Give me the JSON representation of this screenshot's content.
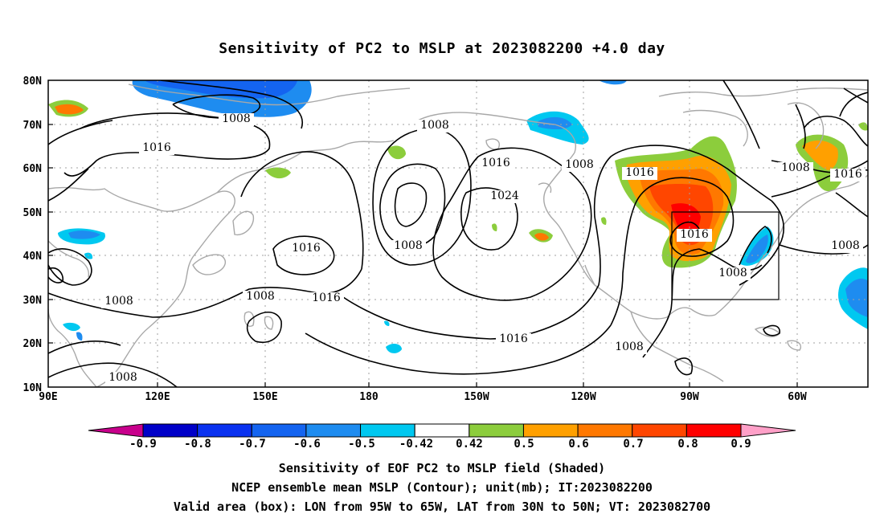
{
  "title": "Sensitivity of PC2 to MSLP at 2023082200 +4.0 day",
  "lat_labels": [
    "80N",
    "70N",
    "60N",
    "50N",
    "40N",
    "30N",
    "20N",
    "10N"
  ],
  "lon_labels": [
    "90E",
    "120E",
    "150E",
    "180",
    "150W",
    "120W",
    "90W",
    "60W"
  ],
  "contour_labels": [
    "1008",
    "1016",
    "1008",
    "1016",
    "1008",
    "1016",
    "1024",
    "1008",
    "1008",
    "1016",
    "1008",
    "1016",
    "1008",
    "1016",
    "1008",
    "1016",
    "1008",
    "1016",
    "1008",
    "1008",
    "1016",
    "1016"
  ],
  "colorbar": {
    "labels": [
      "-0.9",
      "-0.8",
      "-0.7",
      "-0.6",
      "-0.5",
      "-0.42",
      "0.42",
      "0.5",
      "0.6",
      "0.7",
      "0.8",
      "0.9"
    ],
    "colors": [
      "#0000c8",
      "#0a32f0",
      "#1464f0",
      "#1e8cf0",
      "#00c8f0",
      "#ffffff",
      "#8ccd3c",
      "#ffa000",
      "#ff7800",
      "#ff4600",
      "#ff0000"
    ],
    "low_extension_color": "#c8008c",
    "high_extension_color": "#ffa0c8"
  },
  "valid_box": {
    "lon_min": "95W",
    "lon_max": "65W",
    "lat_min": "30N",
    "lat_max": "50N"
  },
  "captions": [
    "Sensitivity of EOF PC2 to MSLP field (Shaded)",
    "NCEP ensemble mean MSLP (Contour); unit(mb); IT:2023082200",
    "Valid area (box): LON from 95W to 65W, LAT from 30N to 50N; VT: 2023082700"
  ]
}
